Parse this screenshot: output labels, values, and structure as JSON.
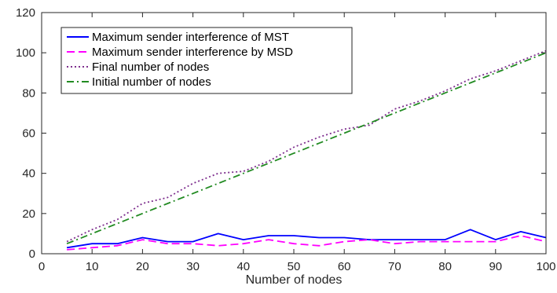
{
  "chart_data": {
    "type": "line",
    "xlabel": "Number of nodes",
    "ylabel": "",
    "xlim": [
      0,
      100
    ],
    "ylim": [
      0,
      120
    ],
    "xticks": [
      0,
      10,
      20,
      30,
      40,
      50,
      60,
      70,
      80,
      90,
      100
    ],
    "yticks": [
      0,
      20,
      40,
      60,
      80,
      100,
      120
    ],
    "grid": false,
    "legend_position": "top-left",
    "x": [
      5,
      10,
      15,
      20,
      25,
      30,
      35,
      40,
      45,
      50,
      55,
      60,
      65,
      70,
      75,
      80,
      85,
      90,
      95,
      100
    ],
    "series": [
      {
        "name": "Maximum sender interference of MST",
        "color": "#0000ff",
        "style": "solid",
        "values": [
          3,
          5,
          5,
          8,
          6,
          6,
          10,
          7,
          9,
          9,
          8,
          8,
          7,
          7,
          7,
          7,
          12,
          7,
          11,
          8
        ]
      },
      {
        "name": "Maximum sender interference by MSD",
        "color": "#ff00ff",
        "style": "dashed",
        "values": [
          2,
          3,
          4,
          7,
          5,
          5,
          4,
          5,
          7,
          5,
          4,
          6,
          7,
          5,
          6,
          6,
          6,
          6,
          9,
          6
        ]
      },
      {
        "name": "Final number of nodes",
        "color": "#7e2f8e",
        "style": "dotted",
        "values": [
          6,
          12,
          17,
          25,
          28,
          35,
          40,
          41,
          46,
          53,
          58,
          62,
          64,
          72,
          76,
          81,
          87,
          91,
          96,
          101
        ]
      },
      {
        "name": "Initial number of nodes",
        "color": "#228b22",
        "style": "dashdot",
        "values": [
          5,
          10,
          15,
          20,
          25,
          30,
          35,
          40,
          45,
          50,
          55,
          60,
          65,
          70,
          75,
          80,
          85,
          90,
          95,
          100
        ]
      }
    ]
  }
}
